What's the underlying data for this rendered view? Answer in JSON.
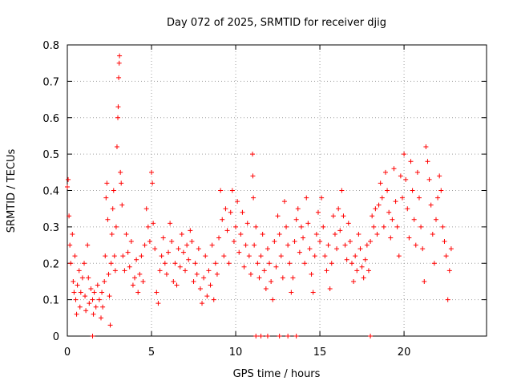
{
  "chart_data": {
    "type": "scatter",
    "title": "Day 072 of 2025, SRMTID for receiver djig",
    "xlabel": "GPS time / hours",
    "ylabel": "SRMTID / TECUs",
    "xlim": [
      0,
      24.9
    ],
    "ylim": [
      0,
      0.8
    ],
    "x_ticks": [
      0,
      5,
      10,
      15,
      20
    ],
    "x_tick_labels": [
      "0",
      "5",
      "10",
      "15",
      "20"
    ],
    "y_ticks": [
      0,
      0.1,
      0.2,
      0.3,
      0.4,
      0.5,
      0.6,
      0.7,
      0.8
    ],
    "y_tick_labels": [
      "0",
      "0.1",
      "0.2",
      "0.3",
      "0.4",
      "0.5",
      "0.6",
      "0.7",
      "0.8"
    ],
    "grid": true,
    "marker": "+",
    "color": "#ff0000",
    "series": [
      {
        "name": "SRMTID",
        "points": [
          [
            0.0,
            0.41
          ],
          [
            0.05,
            0.43
          ],
          [
            0.1,
            0.33
          ],
          [
            0.15,
            0.25
          ],
          [
            0.2,
            0.2
          ],
          [
            0.3,
            0.28
          ],
          [
            0.35,
            0.15
          ],
          [
            0.4,
            0.12
          ],
          [
            0.45,
            0.22
          ],
          [
            0.5,
            0.1
          ],
          [
            0.55,
            0.06
          ],
          [
            0.6,
            0.14
          ],
          [
            0.7,
            0.18
          ],
          [
            0.75,
            0.08
          ],
          [
            0.8,
            0.12
          ],
          [
            0.9,
            0.16
          ],
          [
            1.0,
            0.2
          ],
          [
            1.05,
            0.11
          ],
          [
            1.1,
            0.07
          ],
          [
            1.2,
            0.25
          ],
          [
            1.25,
            0.16
          ],
          [
            1.3,
            0.09
          ],
          [
            1.4,
            0.13
          ],
          [
            1.5,
            0.1
          ],
          [
            1.55,
            0.06
          ],
          [
            1.6,
            0.12
          ],
          [
            1.7,
            0.08
          ],
          [
            1.8,
            0.14
          ],
          [
            1.9,
            0.1
          ],
          [
            2.0,
            0.05
          ],
          [
            2.05,
            0.12
          ],
          [
            2.1,
            0.08
          ],
          [
            2.2,
            0.15
          ],
          [
            2.25,
            0.22
          ],
          [
            2.3,
            0.38
          ],
          [
            2.35,
            0.42
          ],
          [
            2.4,
            0.32
          ],
          [
            2.45,
            0.17
          ],
          [
            2.5,
            0.11
          ],
          [
            2.55,
            0.03
          ],
          [
            2.6,
            0.2
          ],
          [
            2.65,
            0.28
          ],
          [
            2.7,
            0.35
          ],
          [
            2.75,
            0.4
          ],
          [
            2.8,
            0.22
          ],
          [
            2.85,
            0.18
          ],
          [
            2.9,
            0.3
          ],
          [
            2.95,
            0.52
          ],
          [
            3.0,
            0.6
          ],
          [
            3.02,
            0.63
          ],
          [
            3.05,
            0.71
          ],
          [
            3.08,
            0.75
          ],
          [
            3.1,
            0.77
          ],
          [
            3.15,
            0.45
          ],
          [
            3.2,
            0.42
          ],
          [
            3.25,
            0.36
          ],
          [
            3.3,
            0.22
          ],
          [
            3.4,
            0.18
          ],
          [
            3.5,
            0.28
          ],
          [
            3.6,
            0.23
          ],
          [
            3.7,
            0.19
          ],
          [
            3.8,
            0.26
          ],
          [
            3.9,
            0.14
          ],
          [
            4.0,
            0.16
          ],
          [
            4.1,
            0.21
          ],
          [
            4.2,
            0.12
          ],
          [
            4.3,
            0.17
          ],
          [
            4.4,
            0.22
          ],
          [
            4.5,
            0.15
          ],
          [
            4.6,
            0.25
          ],
          [
            4.7,
            0.35
          ],
          [
            4.8,
            0.3
          ],
          [
            4.9,
            0.26
          ],
          [
            5.0,
            0.45
          ],
          [
            5.05,
            0.42
          ],
          [
            5.1,
            0.31
          ],
          [
            5.2,
            0.24
          ],
          [
            5.3,
            0.12
          ],
          [
            5.4,
            0.09
          ],
          [
            5.5,
            0.18
          ],
          [
            5.6,
            0.22
          ],
          [
            5.7,
            0.27
          ],
          [
            5.8,
            0.2
          ],
          [
            5.9,
            0.17
          ],
          [
            6.0,
            0.23
          ],
          [
            6.1,
            0.31
          ],
          [
            6.2,
            0.26
          ],
          [
            6.3,
            0.15
          ],
          [
            6.4,
            0.2
          ],
          [
            6.5,
            0.14
          ],
          [
            6.6,
            0.24
          ],
          [
            6.7,
            0.19
          ],
          [
            6.8,
            0.28
          ],
          [
            6.9,
            0.23
          ],
          [
            7.0,
            0.18
          ],
          [
            7.1,
            0.25
          ],
          [
            7.2,
            0.21
          ],
          [
            7.3,
            0.29
          ],
          [
            7.4,
            0.26
          ],
          [
            7.5,
            0.15
          ],
          [
            7.6,
            0.2
          ],
          [
            7.7,
            0.17
          ],
          [
            7.8,
            0.24
          ],
          [
            7.9,
            0.13
          ],
          [
            8.0,
            0.09
          ],
          [
            8.1,
            0.16
          ],
          [
            8.2,
            0.22
          ],
          [
            8.3,
            0.11
          ],
          [
            8.4,
            0.18
          ],
          [
            8.5,
            0.14
          ],
          [
            8.6,
            0.25
          ],
          [
            8.7,
            0.1
          ],
          [
            8.8,
            0.2
          ],
          [
            8.9,
            0.17
          ],
          [
            9.0,
            0.27
          ],
          [
            9.1,
            0.4
          ],
          [
            9.2,
            0.32
          ],
          [
            9.3,
            0.22
          ],
          [
            9.4,
            0.35
          ],
          [
            9.5,
            0.29
          ],
          [
            9.6,
            0.2
          ],
          [
            9.7,
            0.34
          ],
          [
            9.8,
            0.4
          ],
          [
            9.9,
            0.26
          ],
          [
            10.0,
            0.3
          ],
          [
            10.1,
            0.37
          ],
          [
            10.2,
            0.23
          ],
          [
            10.3,
            0.28
          ],
          [
            10.4,
            0.34
          ],
          [
            10.5,
            0.19
          ],
          [
            10.6,
            0.25
          ],
          [
            10.7,
            0.31
          ],
          [
            10.8,
            0.22
          ],
          [
            10.9,
            0.17
          ],
          [
            11.0,
            0.5
          ],
          [
            11.02,
            0.44
          ],
          [
            11.05,
            0.38
          ],
          [
            11.1,
            0.25
          ],
          [
            11.2,
            0.3
          ],
          [
            11.3,
            0.2
          ],
          [
            11.4,
            0.16
          ],
          [
            11.5,
            0.22
          ],
          [
            11.6,
            0.28
          ],
          [
            11.7,
            0.18
          ],
          [
            11.8,
            0.13
          ],
          [
            11.9,
            0.24
          ],
          [
            12.0,
            0.2
          ],
          [
            12.1,
            0.15
          ],
          [
            12.2,
            0.1
          ],
          [
            12.3,
            0.26
          ],
          [
            12.4,
            0.19
          ],
          [
            12.5,
            0.33
          ],
          [
            12.6,
            0.28
          ],
          [
            12.7,
            0.22
          ],
          [
            12.8,
            0.16
          ],
          [
            12.9,
            0.37
          ],
          [
            13.0,
            0.3
          ],
          [
            13.1,
            0.25
          ],
          [
            13.2,
            0.2
          ],
          [
            13.3,
            0.12
          ],
          [
            13.4,
            0.16
          ],
          [
            13.5,
            0.26
          ],
          [
            13.6,
            0.32
          ],
          [
            13.7,
            0.35
          ],
          [
            13.8,
            0.23
          ],
          [
            13.9,
            0.3
          ],
          [
            14.0,
            0.27
          ],
          [
            14.1,
            0.2
          ],
          [
            14.2,
            0.38
          ],
          [
            14.3,
            0.31
          ],
          [
            14.4,
            0.24
          ],
          [
            14.5,
            0.17
          ],
          [
            14.6,
            0.12
          ],
          [
            14.7,
            0.22
          ],
          [
            14.8,
            0.28
          ],
          [
            14.9,
            0.34
          ],
          [
            15.0,
            0.26
          ],
          [
            15.1,
            0.38
          ],
          [
            15.2,
            0.3
          ],
          [
            15.3,
            0.22
          ],
          [
            15.4,
            0.18
          ],
          [
            15.5,
            0.25
          ],
          [
            15.6,
            0.13
          ],
          [
            15.7,
            0.2
          ],
          [
            15.8,
            0.33
          ],
          [
            15.9,
            0.28
          ],
          [
            16.0,
            0.24
          ],
          [
            16.1,
            0.35
          ],
          [
            16.2,
            0.29
          ],
          [
            16.3,
            0.4
          ],
          [
            16.4,
            0.33
          ],
          [
            16.5,
            0.25
          ],
          [
            16.6,
            0.21
          ],
          [
            16.7,
            0.31
          ],
          [
            16.8,
            0.26
          ],
          [
            16.9,
            0.2
          ],
          [
            17.0,
            0.15
          ],
          [
            17.1,
            0.22
          ],
          [
            17.2,
            0.18
          ],
          [
            17.3,
            0.28
          ],
          [
            17.4,
            0.24
          ],
          [
            17.5,
            0.19
          ],
          [
            17.6,
            0.16
          ],
          [
            17.7,
            0.21
          ],
          [
            17.8,
            0.25
          ],
          [
            17.9,
            0.18
          ],
          [
            18.0,
            0.26
          ],
          [
            18.1,
            0.33
          ],
          [
            18.2,
            0.3
          ],
          [
            18.3,
            0.35
          ],
          [
            18.4,
            0.28
          ],
          [
            18.5,
            0.36
          ],
          [
            18.6,
            0.42
          ],
          [
            18.7,
            0.38
          ],
          [
            18.8,
            0.3
          ],
          [
            18.9,
            0.45
          ],
          [
            19.0,
            0.4
          ],
          [
            19.1,
            0.34
          ],
          [
            19.2,
            0.27
          ],
          [
            19.3,
            0.32
          ],
          [
            19.4,
            0.46
          ],
          [
            19.5,
            0.37
          ],
          [
            19.6,
            0.3
          ],
          [
            19.7,
            0.22
          ],
          [
            19.8,
            0.44
          ],
          [
            19.9,
            0.38
          ],
          [
            20.0,
            0.5
          ],
          [
            20.1,
            0.43
          ],
          [
            20.2,
            0.35
          ],
          [
            20.3,
            0.27
          ],
          [
            20.4,
            0.48
          ],
          [
            20.5,
            0.4
          ],
          [
            20.6,
            0.32
          ],
          [
            20.7,
            0.25
          ],
          [
            20.8,
            0.45
          ],
          [
            20.9,
            0.38
          ],
          [
            21.0,
            0.3
          ],
          [
            21.1,
            0.24
          ],
          [
            21.2,
            0.15
          ],
          [
            21.3,
            0.52
          ],
          [
            21.4,
            0.48
          ],
          [
            21.5,
            0.43
          ],
          [
            21.6,
            0.36
          ],
          [
            21.7,
            0.28
          ],
          [
            21.8,
            0.2
          ],
          [
            21.9,
            0.32
          ],
          [
            22.0,
            0.38
          ],
          [
            22.1,
            0.44
          ],
          [
            22.2,
            0.4
          ],
          [
            22.3,
            0.3
          ],
          [
            22.4,
            0.26
          ],
          [
            22.5,
            0.22
          ],
          [
            22.6,
            0.1
          ],
          [
            22.7,
            0.18
          ],
          [
            22.8,
            0.24
          ],
          [
            1.5,
            0.0
          ],
          [
            11.2,
            0.0
          ],
          [
            11.5,
            0.0
          ],
          [
            11.9,
            0.0
          ],
          [
            12.6,
            0.0
          ],
          [
            13.1,
            0.0
          ],
          [
            13.6,
            0.0
          ],
          [
            18.0,
            0.0
          ]
        ]
      }
    ]
  }
}
